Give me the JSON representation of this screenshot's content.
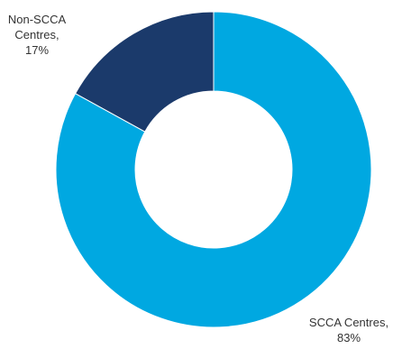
{
  "chart_data": {
    "type": "pie",
    "donut": true,
    "slices": [
      {
        "label": "SCCA Centres",
        "value": 83,
        "color": "#00a8e1",
        "label_line1": "SCCA Centres,",
        "label_line2": "83%"
      },
      {
        "label": "Non-SCCA Centres",
        "value": 17,
        "color": "#1b3a6b",
        "label_line1": "Non-SCCA",
        "label_line2": "Centres, 17%"
      }
    ],
    "start": "top",
    "direction": "clockwise",
    "legend": "none"
  }
}
